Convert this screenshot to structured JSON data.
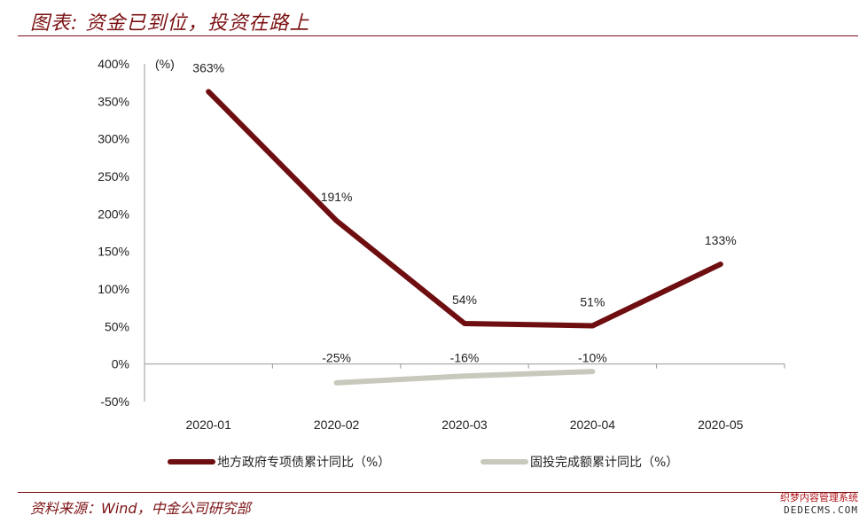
{
  "header": {
    "title": "图表: 资金已到位，投资在路上"
  },
  "footer": {
    "source": "资料来源：Wind，中金公司研究部",
    "watermark_line1": "织梦内容管理系统",
    "watermark_line2": "DEDECMS.COM"
  },
  "colors": {
    "brand": "#7b1113",
    "series1": "#6e0e10",
    "series2": "#c9c8bd"
  },
  "chart_data": {
    "type": "line",
    "unit_label": "(%)",
    "categories": [
      "2020-01",
      "2020-02",
      "2020-03",
      "2020-04",
      "2020-05"
    ],
    "ylim": [
      -50,
      400
    ],
    "yticks": [
      400,
      350,
      300,
      250,
      200,
      150,
      100,
      50,
      0,
      -50
    ],
    "ytick_labels": [
      "400%",
      "350%",
      "300%",
      "250%",
      "200%",
      "150%",
      "100%",
      "50%",
      "0%",
      "-50%"
    ],
    "grid": false,
    "legend_position": "bottom",
    "series": [
      {
        "name": "地方政府专项债累计同比（%）",
        "values": [
          363,
          191,
          54,
          51,
          133
        ],
        "labels": [
          "363%",
          "191%",
          "54%",
          "51%",
          "133%"
        ]
      },
      {
        "name": "固投完成额累计同比（%）",
        "values": [
          null,
          -25,
          -16,
          -10,
          null
        ],
        "labels": [
          "",
          "-25%",
          "-16%",
          "-10%",
          ""
        ]
      }
    ]
  }
}
